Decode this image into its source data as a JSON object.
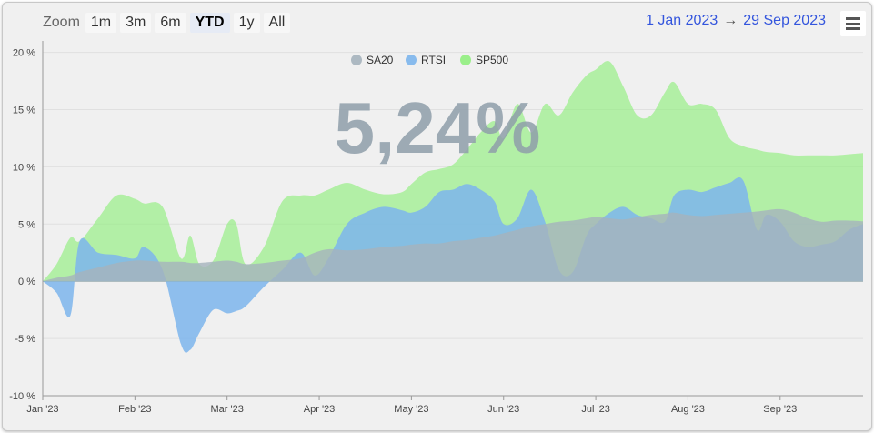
{
  "toolbar": {
    "zoom_label": "Zoom",
    "zoom_buttons": [
      "1m",
      "3m",
      "6m",
      "YTD",
      "1y",
      "All"
    ],
    "active_zoom": "YTD",
    "range_from": "1 Jan 2023",
    "range_arrow": "→",
    "range_to": "29 Sep 2023",
    "menu_icon": "hamburger-menu-icon"
  },
  "big_value": "5,24%",
  "chart_data": {
    "type": "area",
    "xlabel": "",
    "ylabel": "",
    "ylim": [
      -10,
      20
    ],
    "ytick_labels": [
      "20 %",
      "15 %",
      "10 %",
      "5 %",
      "0 %",
      "-5 %",
      "-10 %"
    ],
    "yticks": [
      20,
      15,
      10,
      5,
      0,
      -5,
      -10
    ],
    "xtick_labels": [
      "Jan '23",
      "Feb '23",
      "Mar '23",
      "Apr '23",
      "May '23",
      "Jun '23",
      "Jul '23",
      "Aug '23",
      "Sep '23"
    ],
    "xtick_months": [
      0,
      1,
      2,
      3,
      4,
      5,
      6,
      7,
      8
    ],
    "x_months": [
      0,
      0.15,
      0.3,
      0.4,
      0.6,
      0.8,
      1.0,
      1.1,
      1.3,
      1.5,
      1.6,
      1.7,
      1.85,
      2.0,
      2.1,
      2.2,
      2.4,
      2.6,
      2.8,
      2.95,
      3.1,
      3.3,
      3.5,
      3.7,
      3.9,
      4.0,
      4.15,
      4.3,
      4.45,
      4.6,
      4.75,
      4.9,
      5.0,
      5.15,
      5.3,
      5.45,
      5.6,
      5.75,
      5.9,
      6.0,
      6.15,
      6.3,
      6.45,
      6.6,
      6.75,
      6.85,
      7.0,
      7.15,
      7.3,
      7.45,
      7.6,
      7.75,
      7.85,
      8.0,
      8.15,
      8.3,
      8.45,
      8.6,
      8.75,
      8.9
    ],
    "grid": true,
    "legend_position": "top-center",
    "series": [
      {
        "name": "SP500",
        "color": "#90ee7e",
        "values": [
          0.0,
          1.5,
          3.8,
          3.5,
          5.5,
          7.5,
          7.2,
          6.8,
          6.5,
          2.0,
          4.0,
          1.5,
          1.8,
          5.0,
          5.0,
          1.5,
          3.0,
          7.0,
          7.5,
          7.5,
          8.0,
          8.6,
          8.0,
          7.6,
          7.8,
          8.5,
          9.5,
          9.8,
          10.2,
          11.5,
          13.0,
          14.0,
          12.5,
          15.5,
          13.0,
          15.5,
          14.5,
          16.5,
          18.0,
          18.5,
          19.2,
          17.0,
          14.5,
          14.5,
          16.5,
          17.4,
          15.5,
          15.5,
          15.0,
          12.5,
          11.8,
          11.5,
          11.3,
          11.2,
          11.0,
          11.0,
          11.0,
          11.0,
          11.1,
          11.2
        ],
        "opacity": 0.65
      },
      {
        "name": "RTSI",
        "color": "#7cb5ec",
        "values": [
          0.0,
          -1.0,
          -3.0,
          3.5,
          2.5,
          2.3,
          2.0,
          3.0,
          1.0,
          -5.5,
          -6.0,
          -4.5,
          -2.5,
          -2.8,
          -2.6,
          -2.2,
          -0.5,
          1.0,
          2.5,
          0.5,
          2.0,
          5.0,
          6.0,
          6.5,
          6.2,
          6.0,
          6.5,
          7.8,
          8.0,
          8.5,
          8.0,
          7.0,
          5.0,
          5.5,
          8.0,
          5.2,
          1.0,
          0.8,
          4.0,
          5.0,
          6.0,
          6.5,
          5.8,
          5.5,
          5.2,
          7.5,
          8.0,
          7.8,
          8.2,
          8.6,
          8.8,
          4.5,
          5.8,
          5.2,
          3.5,
          3.0,
          3.2,
          3.5,
          4.5,
          5.0
        ],
        "opacity": 0.85
      },
      {
        "name": "SA20",
        "color": "#a5b3bd",
        "values": [
          0.0,
          0.3,
          0.5,
          0.8,
          1.2,
          1.6,
          1.8,
          1.8,
          1.7,
          1.7,
          1.6,
          1.6,
          1.7,
          1.8,
          1.7,
          1.5,
          1.6,
          1.8,
          2.0,
          2.5,
          2.8,
          2.7,
          2.8,
          3.0,
          3.1,
          3.2,
          3.3,
          3.3,
          3.5,
          3.6,
          3.8,
          4.0,
          4.2,
          4.5,
          4.8,
          5.0,
          5.2,
          5.3,
          5.5,
          5.6,
          5.5,
          5.4,
          5.6,
          5.8,
          5.9,
          6.0,
          5.8,
          5.7,
          5.8,
          5.9,
          6.0,
          6.1,
          6.2,
          6.3,
          6.0,
          5.5,
          5.2,
          5.3,
          5.3,
          5.24
        ],
        "opacity": 0.8
      }
    ],
    "legend_order": [
      "SA20",
      "RTSI",
      "SP500"
    ]
  }
}
